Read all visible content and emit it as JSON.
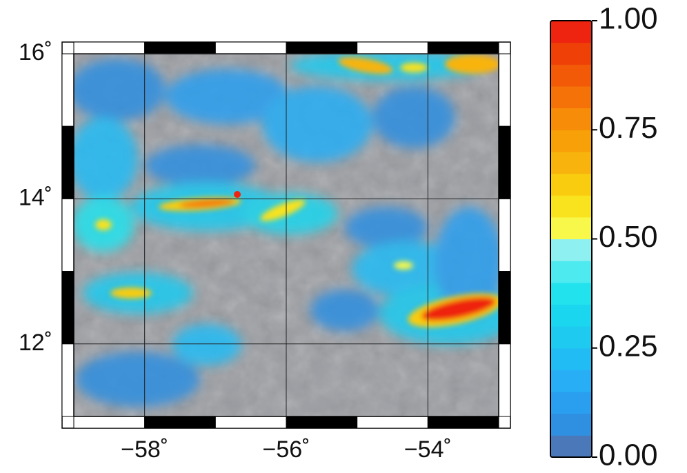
{
  "map": {
    "xlim": [
      -59,
      -53
    ],
    "ylim": [
      11,
      16
    ],
    "xticks": [
      {
        "value": -58,
        "label": "−58˚"
      },
      {
        "value": -56,
        "label": "−56˚"
      },
      {
        "value": -54,
        "label": "−54˚"
      }
    ],
    "yticks": [
      {
        "value": 16,
        "label": "16˚"
      },
      {
        "value": 14,
        "label": "14˚"
      },
      {
        "value": 12,
        "label": "12˚"
      }
    ],
    "grid": true,
    "colorbar": {
      "lim": [
        0,
        1
      ],
      "ticks": [
        {
          "value": 0,
          "label": "0.00"
        },
        {
          "value": 0.25,
          "label": "0.25"
        },
        {
          "value": 0.5,
          "label": "0.50"
        },
        {
          "value": 0.75,
          "label": "0.75"
        },
        {
          "value": 1,
          "label": "1.00"
        }
      ],
      "colors": [
        "#4a78b8",
        "#2f8fe0",
        "#2a9ff0",
        "#28aef5",
        "#22bcf5",
        "#1ecaf0",
        "#1ad6ee",
        "#22e2ee",
        "#4deaf0",
        "#8ef0f0",
        "#f8f84a",
        "#f9e21e",
        "#f9cc10",
        "#f8b40c",
        "#f7a008",
        "#f68c08",
        "#f47208",
        "#f25a08",
        "#ef4008",
        "#ee2410"
      ]
    }
  }
}
